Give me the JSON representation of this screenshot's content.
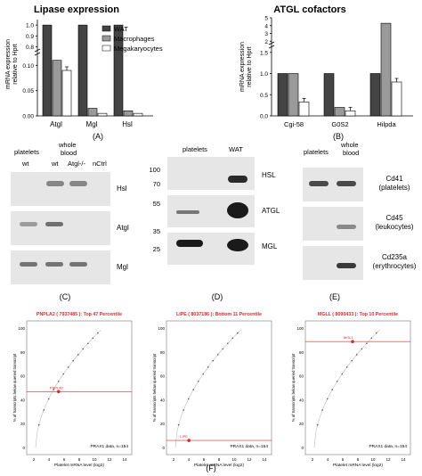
{
  "panelA": {
    "label": "(A)",
    "title": "Lipase expression",
    "ylabel_line1": "mRNA expression",
    "ylabel_line2": "relative to Hprt",
    "legend": [
      "WAT",
      "Macrophages",
      "Megakaryocytes"
    ],
    "categories": [
      "Atgl",
      "Mgl",
      "Hsl"
    ],
    "yticks": [
      "0.00",
      "0.05",
      "0.10",
      "0.8",
      "0.9",
      "1.0"
    ]
  },
  "panelB": {
    "label": "(B)",
    "title": "ATGL cofactors",
    "ylabel_line1": "mRNA expression",
    "ylabel_line2": "relative to Hprt",
    "categories": [
      "Cgi-58",
      "G0S2",
      "Hilpda"
    ],
    "yticks": [
      "0.0",
      "0.5",
      "1.0",
      "1.5",
      "2",
      "3",
      "4",
      "5"
    ]
  },
  "panelC": {
    "label": "(C)",
    "col_headers": [
      "platelets",
      "whole blood"
    ],
    "lanes": [
      "wt",
      "wt",
      "Atgl-/-",
      "nCtrl"
    ],
    "rows": [
      "Hsl",
      "Atgl",
      "Mgl"
    ]
  },
  "panelD": {
    "label": "(D)",
    "col_headers": [
      "platelets",
      "WAT"
    ],
    "markers": [
      "100",
      "70",
      "55",
      "35",
      "25"
    ],
    "rows": [
      "HSL",
      "ATGL",
      "MGL"
    ]
  },
  "panelE": {
    "label": "(E)",
    "col_headers": [
      "platelets",
      "whole blood"
    ],
    "rows": [
      {
        "name": "Cd41",
        "sub": "(platelets)"
      },
      {
        "name": "Cd45",
        "sub": "(leukocytes)"
      },
      {
        "name": "Cd235a",
        "sub": "(erythrocytes)"
      }
    ]
  },
  "panelF": {
    "label": "(F)",
    "ylabel": "% of transcripts below queried transcript",
    "xlabel": "Platelet mRNA level (log2)",
    "xticks": [
      "2",
      "4",
      "6",
      "8",
      "10",
      "12",
      "14"
    ],
    "yticks": [
      "0",
      "20",
      "40",
      "60",
      "80",
      "100"
    ],
    "footer": "PRAX1 data, n=154",
    "plots": [
      {
        "header": "PNPLA2 ( 7937485 ): Top 47 Percentile",
        "gene": "PNPLA2"
      },
      {
        "header": "LIPE ( 8037186 ): Bottom 11 Percentile",
        "gene": "LIPE"
      },
      {
        "header": "MGLL ( 8090433 ): Top 10 Percentile",
        "gene": "MGLL"
      }
    ]
  },
  "colors": {
    "wat": "#444444",
    "macrophages": "#9a9a9a",
    "megakaryocytes": "#ffffff",
    "highlight": "#e0282a"
  },
  "chart_data": [
    {
      "type": "bar",
      "title": "Lipase expression",
      "ylabel": "mRNA expression relative to Hprt",
      "categories": [
        "Atgl",
        "Mgl",
        "Hsl"
      ],
      "series": [
        {
          "name": "WAT",
          "values": [
            1.0,
            1.0,
            1.0
          ]
        },
        {
          "name": "Macrophages",
          "values": [
            0.11,
            0.015,
            0.01
          ]
        },
        {
          "name": "Megakaryocytes",
          "values": [
            0.09,
            0.005,
            0.005
          ]
        }
      ]
    },
    {
      "type": "bar",
      "title": "ATGL cofactors",
      "ylabel": "mRNA expression relative to Hprt",
      "categories": [
        "Cgi-58",
        "G0S2",
        "Hilpda"
      ],
      "series": [
        {
          "values": [
            1.0,
            1.0,
            1.0
          ]
        },
        {
          "values": [
            1.0,
            0.2,
            4.3
          ]
        },
        {
          "values": [
            0.33,
            0.12,
            0.8
          ]
        }
      ]
    }
  ]
}
